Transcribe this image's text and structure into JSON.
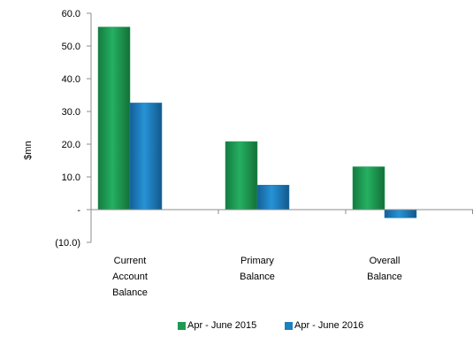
{
  "chart_data": {
    "type": "bar",
    "ylabel": "$mn",
    "ylim": [
      -10,
      60
    ],
    "yticks": [
      {
        "value": 60,
        "label": "60.0"
      },
      {
        "value": 50,
        "label": "50.0"
      },
      {
        "value": 40,
        "label": "40.0"
      },
      {
        "value": 30,
        "label": "30.0"
      },
      {
        "value": 20,
        "label": "20.0"
      },
      {
        "value": 10,
        "label": "10.0"
      },
      {
        "value": 0,
        "label": "-"
      },
      {
        "value": -10,
        "label": "(10.0)"
      }
    ],
    "categories": [
      [
        "Current",
        "Account",
        "Balance"
      ],
      [
        "Primary",
        "Balance"
      ],
      [
        "Overall",
        "Balance"
      ]
    ],
    "series": [
      {
        "name": "Apr - June 2015",
        "values": [
          55.8,
          20.8,
          13.1
        ],
        "color": "#1f9a55"
      },
      {
        "name": "Apr - June 2016",
        "values": [
          32.6,
          7.5,
          -2.5
        ],
        "color": "#1f7fbf"
      }
    ],
    "grid": false,
    "legend_position": "bottom"
  }
}
